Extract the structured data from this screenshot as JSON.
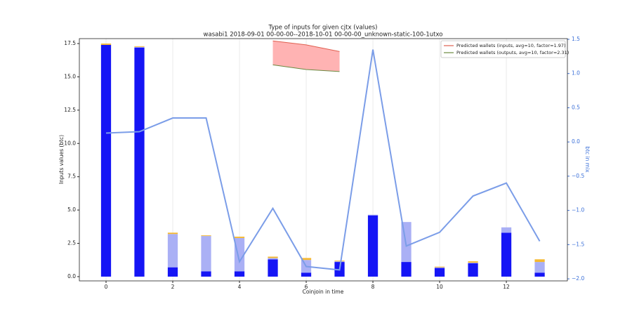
{
  "chart_data": {
    "type": "bar",
    "title": "Type of inputs for given cjtx (values)",
    "subtitle": "wasabi1 2018-09-01 00-00-00--2018-10-01 00-00-00_unknown-static-100-1utxo",
    "xlabel": "Coinjoin in time",
    "ylabel": "Inputs values (btc)",
    "y2label": "btc in mix",
    "x": [
      0,
      1,
      2,
      3,
      4,
      5,
      6,
      7,
      8,
      9,
      10,
      11,
      12,
      13
    ],
    "xlim": [
      -0.8,
      13.83
    ],
    "xticks": [
      0,
      2,
      4,
      6,
      8,
      10,
      12
    ],
    "ylim": [
      -0.32,
      17.87
    ],
    "yticks": [
      {
        "value": 0,
        "label": "0.0"
      },
      {
        "value": 2.5,
        "label": "2.5"
      },
      {
        "value": 5,
        "label": "5.0"
      },
      {
        "value": 7.5,
        "label": "7.5"
      },
      {
        "value": 10,
        "label": "10.0"
      },
      {
        "value": 12.5,
        "label": "12.5"
      },
      {
        "value": 15,
        "label": "15.0"
      },
      {
        "value": 17.5,
        "label": "17.5"
      }
    ],
    "y2lim": [
      -2.03,
      1.51
    ],
    "y2ticks": [
      {
        "value": 1.5,
        "label": "1.5"
      },
      {
        "value": 1,
        "label": "1.0"
      },
      {
        "value": 0.5,
        "label": "0.5"
      },
      {
        "value": 0,
        "label": "0.0"
      },
      {
        "value": -0.5,
        "label": "−0.5"
      },
      {
        "value": -1,
        "label": "−1.0"
      },
      {
        "value": -1.5,
        "label": "−1.5"
      },
      {
        "value": -2,
        "label": "−2.0"
      }
    ],
    "y2color": "#3a6fd8",
    "grid": true,
    "series": [
      {
        "color": "#1515f5",
        "values": [
          17.4,
          17.2,
          0.7,
          0.4,
          0.4,
          1.3,
          0.3,
          1.1,
          4.6,
          1.1,
          0.65,
          1.0,
          3.3,
          0.3
        ]
      },
      {
        "color": "#aab0f5",
        "values": [
          0,
          0.05,
          2.5,
          2.65,
          2.5,
          0.1,
          0.95,
          0.05,
          0.05,
          3.0,
          0.05,
          0.05,
          0.4,
          0.8
        ]
      },
      {
        "color": "#f5b830",
        "values": [
          0.1,
          0.05,
          0.1,
          0.05,
          0.1,
          0.1,
          0.15,
          0.05,
          0,
          0,
          0.05,
          0.1,
          0,
          0.2
        ]
      }
    ],
    "mix": {
      "color": "#7b9de8",
      "axis": "y2",
      "values": [
        0.13,
        0.15,
        0.35,
        0.35,
        -1.75,
        -0.97,
        -1.82,
        -1.87,
        1.35,
        -1.52,
        -1.32,
        -0.79,
        -0.6,
        -1.45
      ]
    },
    "predicted": [
      {
        "name": "Predicted wallets (inputs, avg=10, factor=1.97)",
        "color": "#e06050",
        "x": [
          5,
          6,
          7
        ],
        "values": [
          17.7,
          17.4,
          16.9
        ]
      },
      {
        "name": "Predicted wallets (outputs, avg=10, factor=2.31)",
        "color": "#6a8a40",
        "x": [
          5,
          6,
          7
        ],
        "values": [
          15.9,
          15.55,
          15.4
        ]
      }
    ],
    "fill_color": "#ffb3b3",
    "legend": "upper right"
  }
}
